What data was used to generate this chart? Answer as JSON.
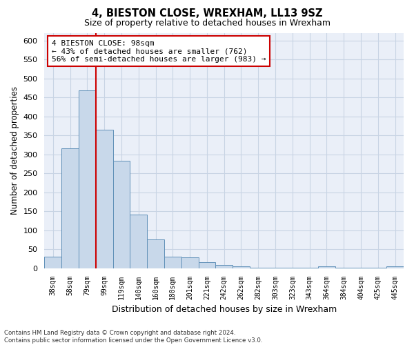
{
  "title1": "4, BIESTON CLOSE, WREXHAM, LL13 9SZ",
  "title2": "Size of property relative to detached houses in Wrexham",
  "xlabel": "Distribution of detached houses by size in Wrexham",
  "ylabel": "Number of detached properties",
  "categories": [
    "38sqm",
    "58sqm",
    "79sqm",
    "99sqm",
    "119sqm",
    "140sqm",
    "160sqm",
    "180sqm",
    "201sqm",
    "221sqm",
    "242sqm",
    "262sqm",
    "282sqm",
    "303sqm",
    "323sqm",
    "343sqm",
    "364sqm",
    "384sqm",
    "404sqm",
    "425sqm",
    "445sqm"
  ],
  "values": [
    30,
    315,
    468,
    365,
    283,
    142,
    75,
    30,
    28,
    15,
    8,
    5,
    2,
    2,
    2,
    1,
    4,
    1,
    1,
    1,
    5
  ],
  "bar_color": "#c8d8ea",
  "bar_edge_color": "#6090b8",
  "vline_x": 2.5,
  "vline_color": "#cc0000",
  "annotation_text": "4 BIESTON CLOSE: 98sqm\n← 43% of detached houses are smaller (762)\n56% of semi-detached houses are larger (983) →",
  "annotation_box_color": "#ffffff",
  "annotation_box_edge": "#cc0000",
  "ylim": [
    0,
    620
  ],
  "yticks": [
    0,
    50,
    100,
    150,
    200,
    250,
    300,
    350,
    400,
    450,
    500,
    550,
    600
  ],
  "footer": "Contains HM Land Registry data © Crown copyright and database right 2024.\nContains public sector information licensed under the Open Government Licence v3.0.",
  "grid_color": "#c8d4e4",
  "background_color": "#eaeff8"
}
